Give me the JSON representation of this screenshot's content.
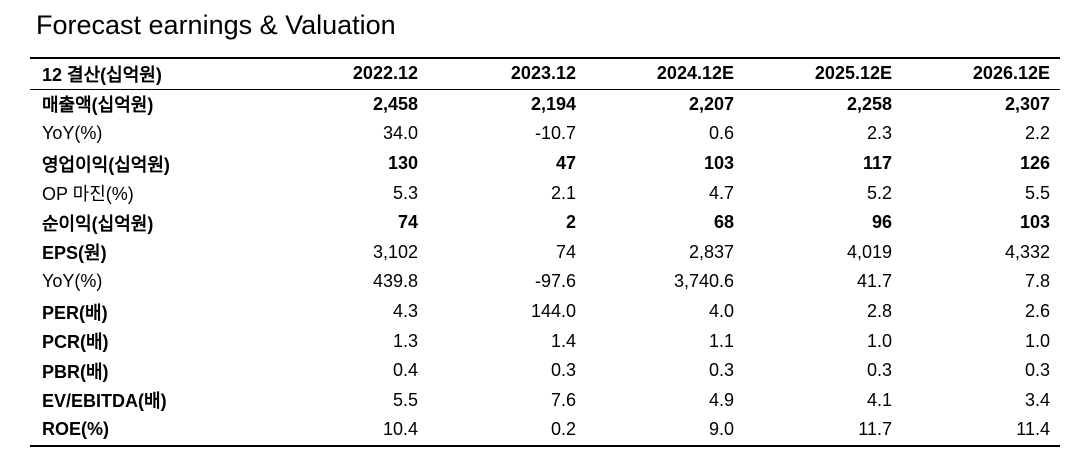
{
  "title": "Forecast earnings & Valuation",
  "table": {
    "header": [
      "12 결산(십억원)",
      "2022.12",
      "2023.12",
      "2024.12E",
      "2025.12E",
      "2026.12E"
    ],
    "rows": [
      [
        "매출액(십억원)",
        "2,458",
        "2,194",
        "2,207",
        "2,258",
        "2,307"
      ],
      [
        "YoY(%)",
        "34.0",
        "-10.7",
        "0.6",
        "2.3",
        "2.2"
      ],
      [
        "영업이익(십억원)",
        "130",
        "47",
        "103",
        "117",
        "126"
      ],
      [
        "OP 마진(%)",
        "5.3",
        "2.1",
        "4.7",
        "5.2",
        "5.5"
      ],
      [
        "순이익(십억원)",
        "74",
        "2",
        "68",
        "96",
        "103"
      ],
      [
        "EPS(원)",
        "3,102",
        "74",
        "2,837",
        "4,019",
        "4,332"
      ],
      [
        "YoY(%)",
        "439.8",
        "-97.6",
        "3,740.6",
        "41.7",
        "7.8"
      ],
      [
        "PER(배)",
        "4.3",
        "144.0",
        "4.0",
        "2.8",
        "2.6"
      ],
      [
        "PCR(배)",
        "1.3",
        "1.4",
        "1.1",
        "1.0",
        "1.0"
      ],
      [
        "PBR(배)",
        "0.4",
        "0.3",
        "0.3",
        "0.3",
        "0.3"
      ],
      [
        "EV/EBITDA(배)",
        "5.5",
        "7.6",
        "4.9",
        "4.1",
        "3.4"
      ],
      [
        "ROE(%)",
        "10.4",
        "0.2",
        "9.0",
        "11.7",
        "11.4"
      ]
    ]
  }
}
